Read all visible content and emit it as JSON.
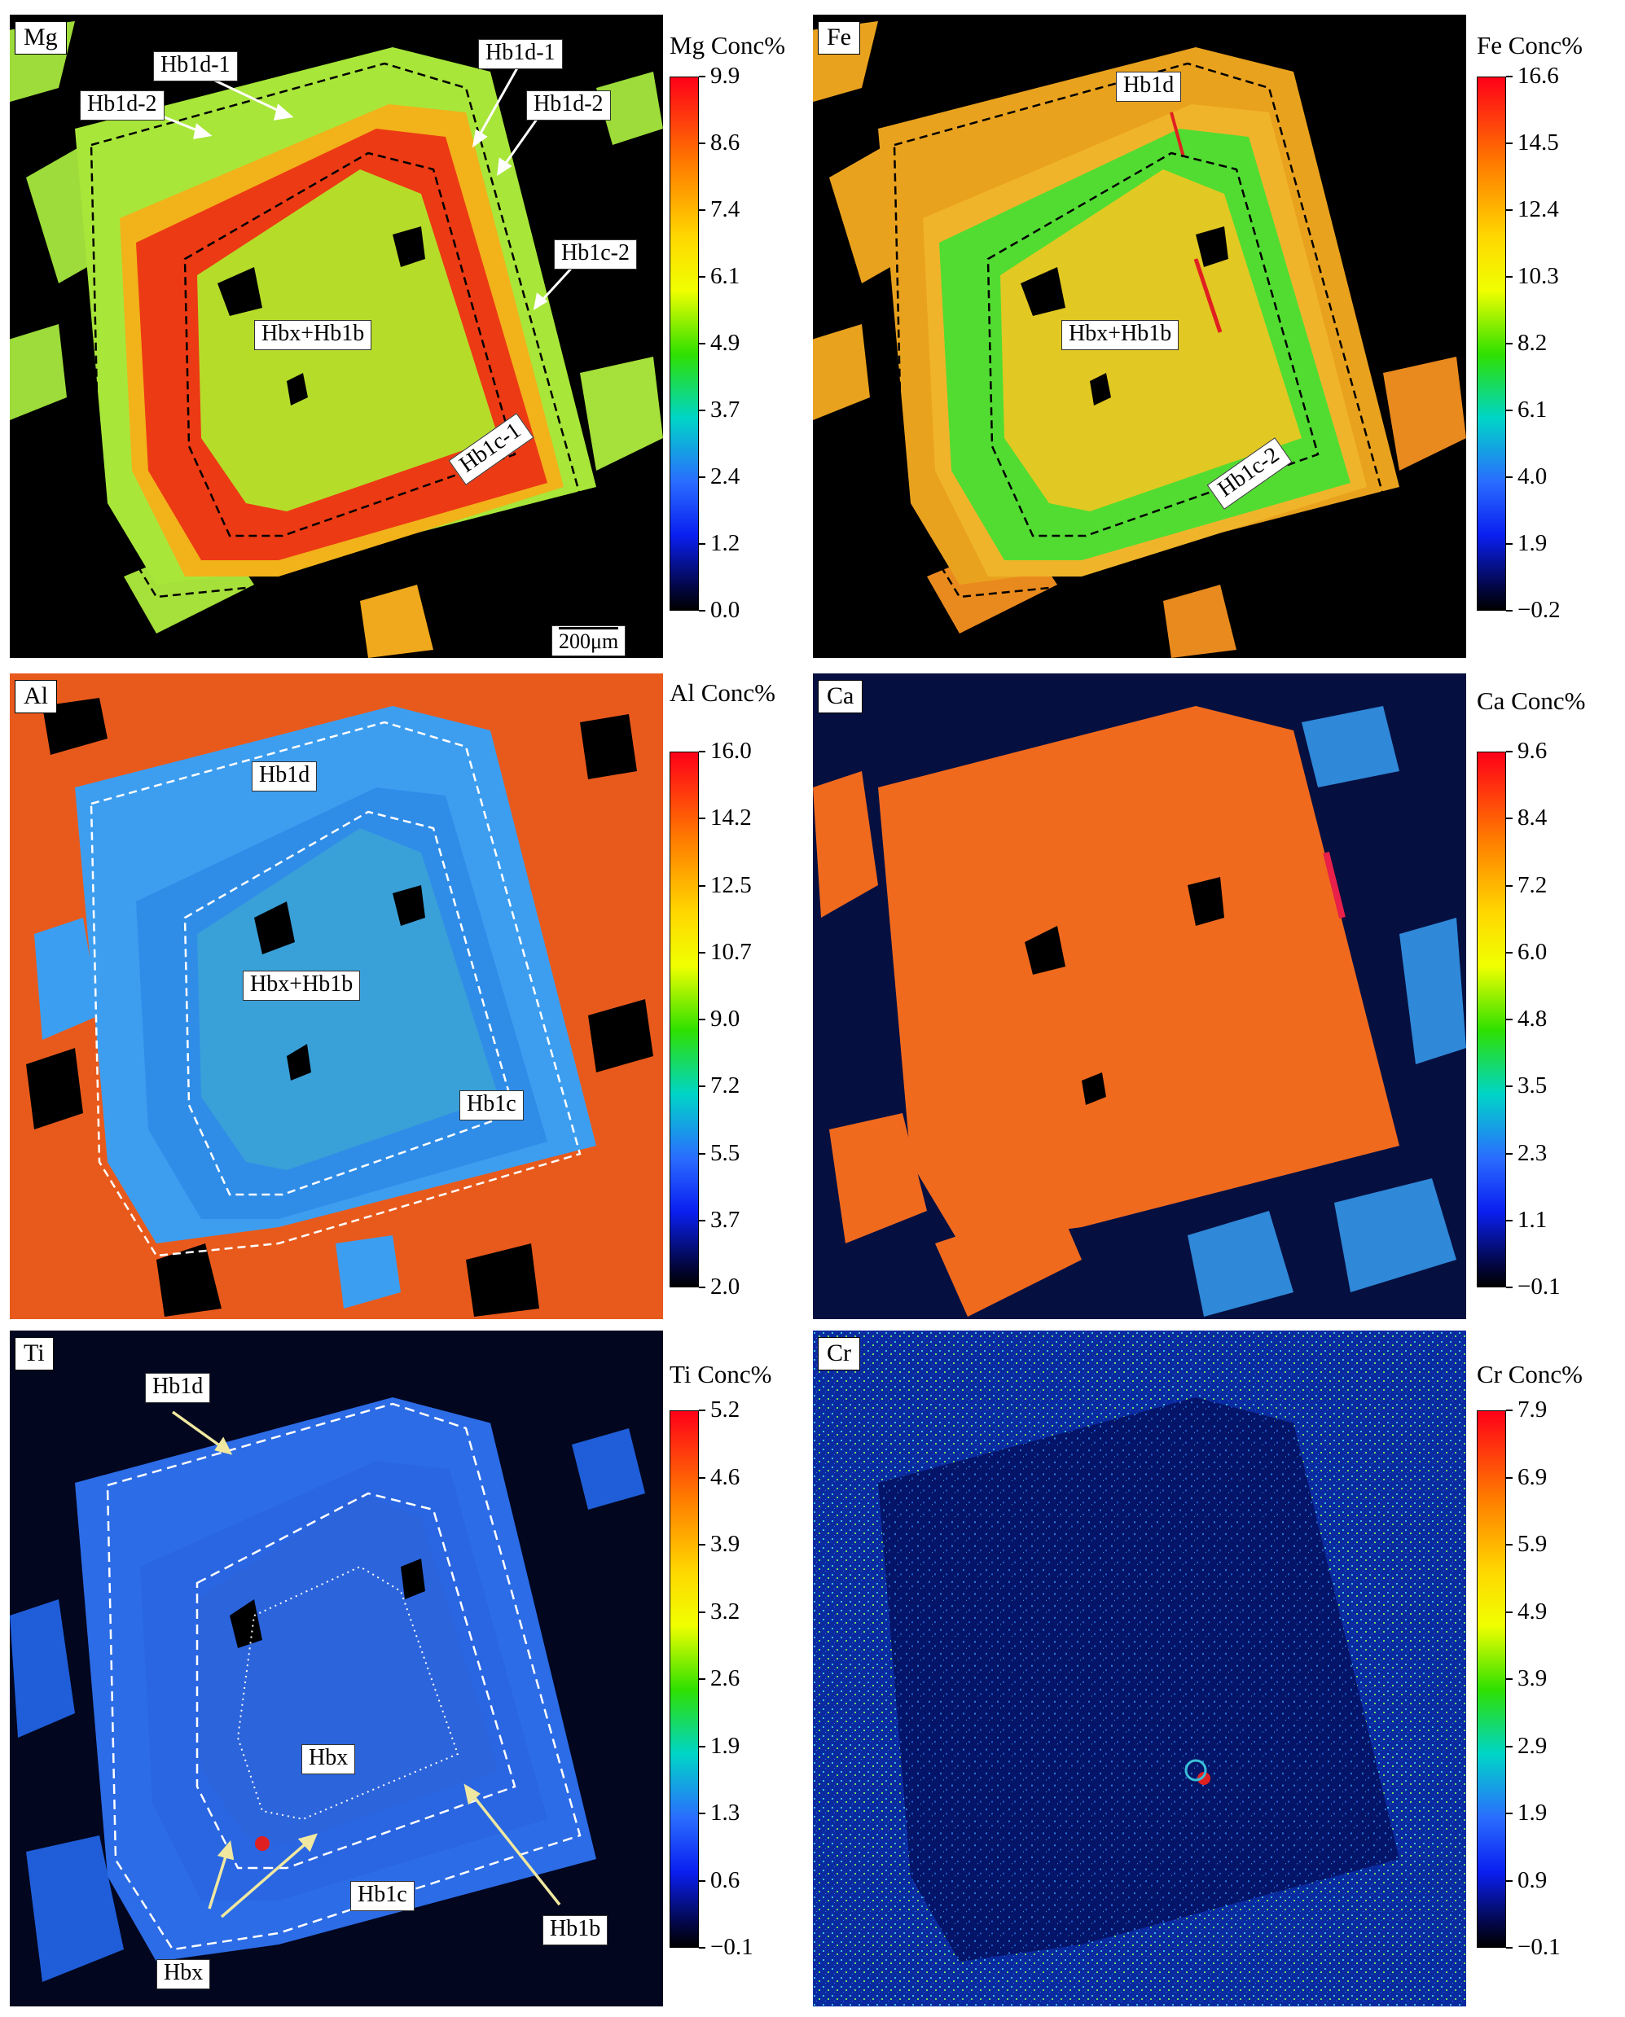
{
  "panels": [
    {
      "element": "Mg",
      "colorbar_title": "Mg Conc%",
      "ticks": [
        "9.9",
        "8.6",
        "7.4",
        "6.1",
        "4.9",
        "3.7",
        "2.4",
        "1.2",
        "0.0"
      ],
      "labels": [
        "Hb1d-1",
        "Hb1d-2",
        "Hb1d-1",
        "Hb1d-2",
        "Hb1c-2",
        "Hbx+Hb1b",
        "Hb1c-1"
      ],
      "scalebar": "200μm",
      "colors": {
        "bg": "#000000",
        "matrix": "#a8e63a",
        "rim": "#f2b21a",
        "mantle": "#ec3a14",
        "core": "#b6dc2a"
      }
    },
    {
      "element": "Fe",
      "colorbar_title": "Fe Conc%",
      "ticks": [
        "16.6",
        "14.5",
        "12.4",
        "10.3",
        "8.2",
        "6.1",
        "4.0",
        "1.9",
        "−0.2"
      ],
      "labels": [
        "Hb1d",
        "Hbx+Hb1b",
        "Hb1c-2"
      ],
      "colors": {
        "bg": "#000000",
        "matrix": "#e9a21e",
        "rim": "#f0b42a",
        "mantle": "#52dc32",
        "core": "#e2c822"
      }
    },
    {
      "element": "Al",
      "colorbar_title": "Al Conc%",
      "ticks": [
        "16.0",
        "14.2",
        "12.5",
        "10.7",
        "9.0",
        "7.2",
        "5.5",
        "3.7",
        "2.0"
      ],
      "labels": [
        "Hb1d",
        "Hbx+Hb1b",
        "Hb1c"
      ],
      "colors": {
        "bg": "#e85a1c",
        "matrix": "#ee6a22",
        "rim": "#3d9ef0",
        "mantle": "#2f8de8",
        "core": "#4bb1b8"
      }
    },
    {
      "element": "Ca",
      "colorbar_title": "Ca Conc%",
      "ticks": [
        "9.6",
        "8.4",
        "7.2",
        "6.0",
        "4.8",
        "3.5",
        "2.3",
        "1.1",
        "−0.1"
      ],
      "labels": [],
      "colors": {
        "bg": "#061040",
        "matrix": "#2f88d8",
        "rim": "#f06a1e",
        "mantle": "#f06a1e",
        "core": "#f06a1e"
      }
    },
    {
      "element": "Ti",
      "colorbar_title": "Ti Conc%",
      "ticks": [
        "5.2",
        "4.6",
        "3.9",
        "3.2",
        "2.6",
        "1.9",
        "1.3",
        "0.6",
        "−0.1"
      ],
      "labels": [
        "Hb1d",
        "Hbx",
        "Hb1c",
        "Hb1b",
        "Hbx"
      ],
      "colors": {
        "bg": "#02061e",
        "matrix": "#1f5ed8",
        "rim": "#2c6ce6",
        "mantle": "#2a66e2",
        "core": "#2c64dc"
      }
    },
    {
      "element": "Cr",
      "colorbar_title": "Cr Conc%",
      "ticks": [
        "7.9",
        "6.9",
        "5.9",
        "4.9",
        "3.9",
        "2.9",
        "1.9",
        "0.9",
        "−0.1"
      ],
      "labels": [],
      "colors": {
        "bg": "#020a40",
        "matrix": "#0a2aa0",
        "rim": "#041468",
        "mantle": "#041468",
        "core": "#041468"
      }
    }
  ]
}
